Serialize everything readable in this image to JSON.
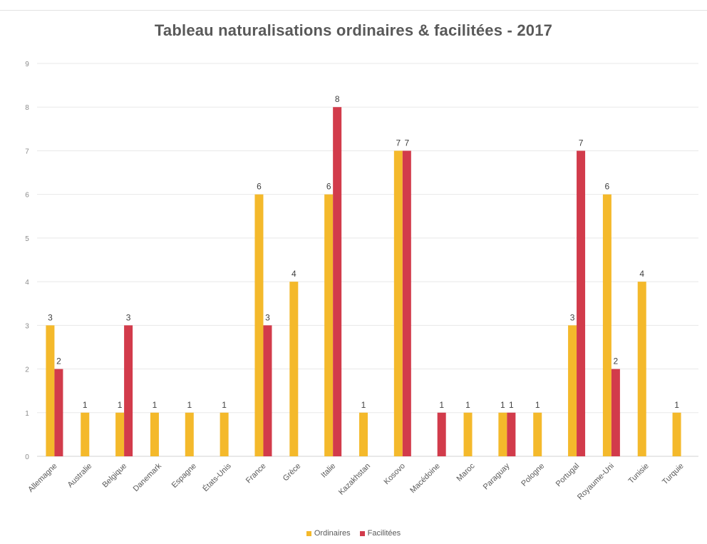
{
  "chart_data": {
    "type": "bar",
    "title": "Tableau naturalisations ordinaires & facilitées - 2017",
    "categories": [
      "Allemagne",
      "Australie",
      "Belgique",
      "Danemark",
      "Espagne",
      "États-Unis",
      "France",
      "Grèce",
      "Italie",
      "Kazakhstan",
      "Kosovo",
      "Macédoine",
      "Maroc",
      "Paraguay",
      "Pologne",
      "Portugal",
      "Royaume-Uni",
      "Tunisie",
      "Turquie"
    ],
    "series": [
      {
        "name": "Ordinaires",
        "color": "#f4b92b",
        "values": [
          3,
          1,
          1,
          1,
          1,
          1,
          6,
          4,
          6,
          1,
          7,
          null,
          1,
          1,
          1,
          3,
          6,
          4,
          1
        ]
      },
      {
        "name": "Facilitées",
        "color": "#d23b4b",
        "values": [
          2,
          null,
          3,
          null,
          null,
          null,
          3,
          null,
          8,
          null,
          7,
          1,
          null,
          1,
          null,
          7,
          2,
          null,
          null
        ]
      }
    ],
    "ylim": [
      0,
      9
    ],
    "yticks": [
      "0",
      "1",
      "2",
      "3",
      "4",
      "5",
      "6",
      "7",
      "8",
      "9"
    ],
    "xlabel": "",
    "ylabel": "",
    "grid": true,
    "legend": "bottom",
    "data_labels": true
  }
}
